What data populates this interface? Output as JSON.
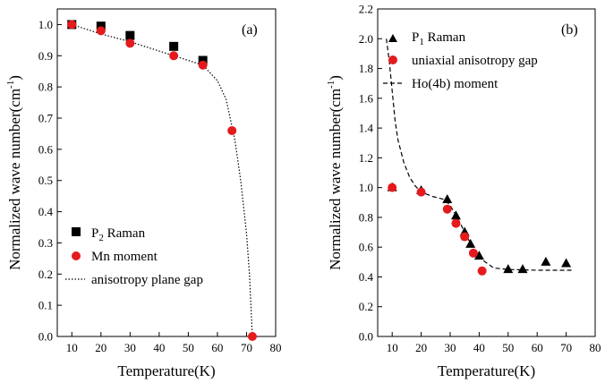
{
  "chart_data": [
    {
      "type": "scatter",
      "panel_label": "(a)",
      "xlabel": "Temperature(K)",
      "ylabel": "Normalized wave number(cm",
      "ylabel_sup": "-1",
      "ylabel_end": ")",
      "xlim": [
        5,
        80
      ],
      "ylim": [
        0.0,
        1.05
      ],
      "xticks": [
        10,
        20,
        30,
        40,
        50,
        60,
        70,
        80
      ],
      "yticks": [
        0.0,
        0.1,
        0.2,
        0.3,
        0.4,
        0.5,
        0.6,
        0.7,
        0.8,
        0.9,
        1.0
      ],
      "ytick_labels": [
        "0.0",
        "0.1",
        "0.2",
        "0.3",
        "0.4",
        "0.5",
        "0.6",
        "0.7",
        "0.8",
        "0.9",
        "1.0"
      ],
      "legend_position": "bottom-left",
      "series": [
        {
          "name": "P",
          "name_sub": "2",
          "name_end": " Raman",
          "marker": "square",
          "color": "#000000",
          "x": [
            10,
            20,
            30,
            45,
            55
          ],
          "y": [
            1.0,
            0.995,
            0.965,
            0.93,
            0.885
          ]
        },
        {
          "name": "Mn moment",
          "marker": "circle",
          "color": "#e41a1c",
          "x": [
            10,
            20,
            30,
            45,
            55,
            65,
            72
          ],
          "y": [
            1.0,
            0.98,
            0.94,
            0.9,
            0.87,
            0.66,
            0.0
          ]
        },
        {
          "name": "anisotropy plane gap",
          "marker": "dotted-line",
          "color": "#000000",
          "x": [
            10,
            20,
            30,
            40,
            50,
            55,
            60,
            63,
            66,
            68,
            70,
            71,
            71.5,
            72
          ],
          "y": [
            1.0,
            0.97,
            0.945,
            0.915,
            0.885,
            0.87,
            0.82,
            0.76,
            0.63,
            0.5,
            0.33,
            0.2,
            0.1,
            0.0
          ]
        }
      ]
    },
    {
      "type": "scatter",
      "panel_label": "(b)",
      "xlabel": "Temperature(K)",
      "ylabel": "Normalized wave number(cm",
      "ylabel_sup": "-1",
      "ylabel_end": ")",
      "xlim": [
        5,
        80
      ],
      "ylim": [
        0.0,
        2.2
      ],
      "xticks": [
        10,
        20,
        30,
        40,
        50,
        60,
        70,
        80
      ],
      "yticks": [
        0.0,
        0.2,
        0.4,
        0.6,
        0.8,
        1.0,
        1.2,
        1.4,
        1.6,
        1.8,
        2.0,
        2.2
      ],
      "ytick_labels": [
        "0.0",
        "0.2",
        "0.4",
        "0.6",
        "0.8",
        "1.0",
        "1.2",
        "1.4",
        "1.6",
        "1.8",
        "2.0",
        "2.2"
      ],
      "legend_position": "top-left",
      "series": [
        {
          "name": "P",
          "name_sub": "1",
          "name_end": " Raman",
          "marker": "triangle",
          "color": "#000000",
          "x": [
            10,
            20,
            29,
            32,
            35,
            37,
            40,
            50,
            55,
            63,
            70
          ],
          "y": [
            1.0,
            0.98,
            0.92,
            0.81,
            0.7,
            0.62,
            0.54,
            0.45,
            0.45,
            0.5,
            0.49
          ]
        },
        {
          "name": "uniaxial anisotropy gap",
          "marker": "circle",
          "color": "#e41a1c",
          "x": [
            10,
            20,
            29,
            32,
            35,
            38,
            41
          ],
          "y": [
            1.0,
            0.97,
            0.855,
            0.76,
            0.67,
            0.56,
            0.44
          ]
        },
        {
          "name": "Ho(4b) moment",
          "marker": "dashed-line",
          "color": "#000000",
          "x": [
            8,
            9,
            10,
            11,
            12,
            14,
            16,
            18,
            20,
            24,
            28,
            30,
            33,
            36,
            38,
            40,
            45,
            50,
            60,
            72
          ],
          "y": [
            2.0,
            1.85,
            1.65,
            1.45,
            1.32,
            1.17,
            1.07,
            1.01,
            0.97,
            0.94,
            0.92,
            0.88,
            0.78,
            0.66,
            0.6,
            0.53,
            0.46,
            0.45,
            0.445,
            0.445
          ]
        }
      ]
    }
  ]
}
